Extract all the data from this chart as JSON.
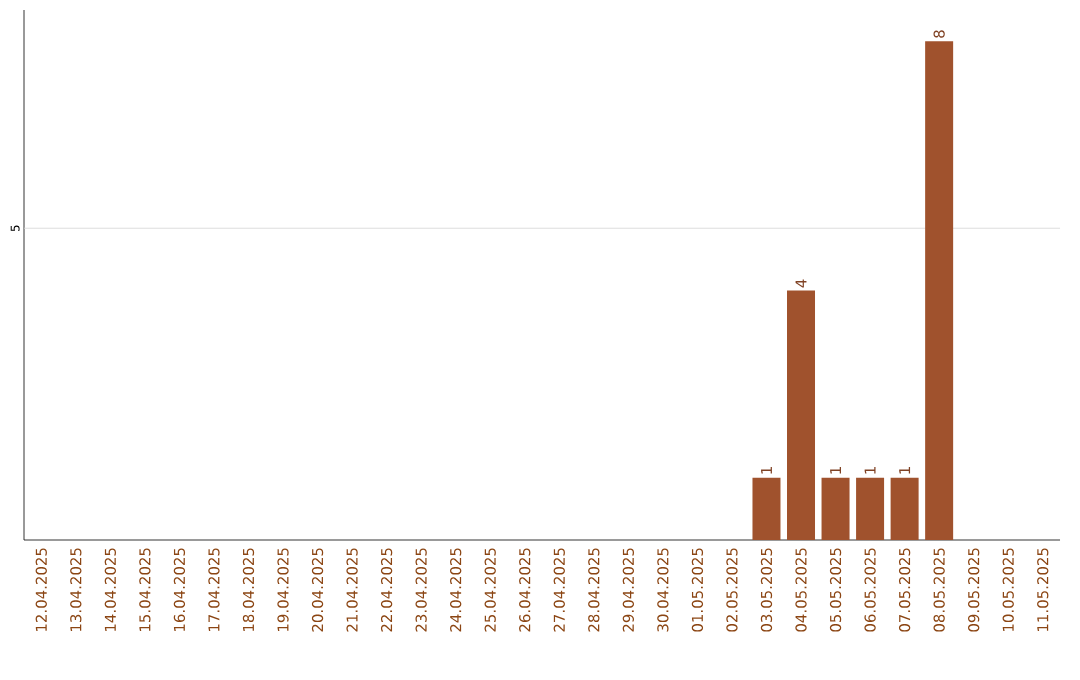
{
  "chart_data": {
    "type": "bar",
    "ylim": [
      0,
      8.5
    ],
    "categories": [
      "12.04.2025",
      "13.04.2025",
      "14.04.2025",
      "15.04.2025",
      "16.04.2025",
      "17.04.2025",
      "18.04.2025",
      "19.04.2025",
      "20.04.2025",
      "21.04.2025",
      "22.04.2025",
      "23.04.2025",
      "24.04.2025",
      "25.04.2025",
      "26.04.2025",
      "27.04.2025",
      "28.04.2025",
      "29.04.2025",
      "30.04.2025",
      "01.05.2025",
      "02.05.2025",
      "03.05.2025",
      "04.05.2025",
      "05.05.2025",
      "06.05.2025",
      "07.05.2025",
      "08.05.2025",
      "09.05.2025",
      "10.05.2025",
      "11.05.2025"
    ],
    "values": [
      null,
      null,
      null,
      null,
      null,
      null,
      null,
      null,
      null,
      null,
      null,
      null,
      null,
      null,
      null,
      null,
      null,
      null,
      null,
      null,
      null,
      1,
      4,
      1,
      1,
      1,
      8,
      null,
      null,
      null
    ],
    "value_labels": [
      null,
      null,
      null,
      null,
      null,
      null,
      null,
      null,
      null,
      null,
      null,
      null,
      null,
      null,
      null,
      null,
      null,
      null,
      null,
      null,
      null,
      "1",
      "4",
      "1",
      "1",
      "1",
      "8",
      null,
      null,
      null
    ],
    "color": "#a0522d",
    "ref_lines": [
      {
        "axis": "y",
        "value": 5,
        "label": "5",
        "color": "#d3d3d3"
      }
    ]
  }
}
